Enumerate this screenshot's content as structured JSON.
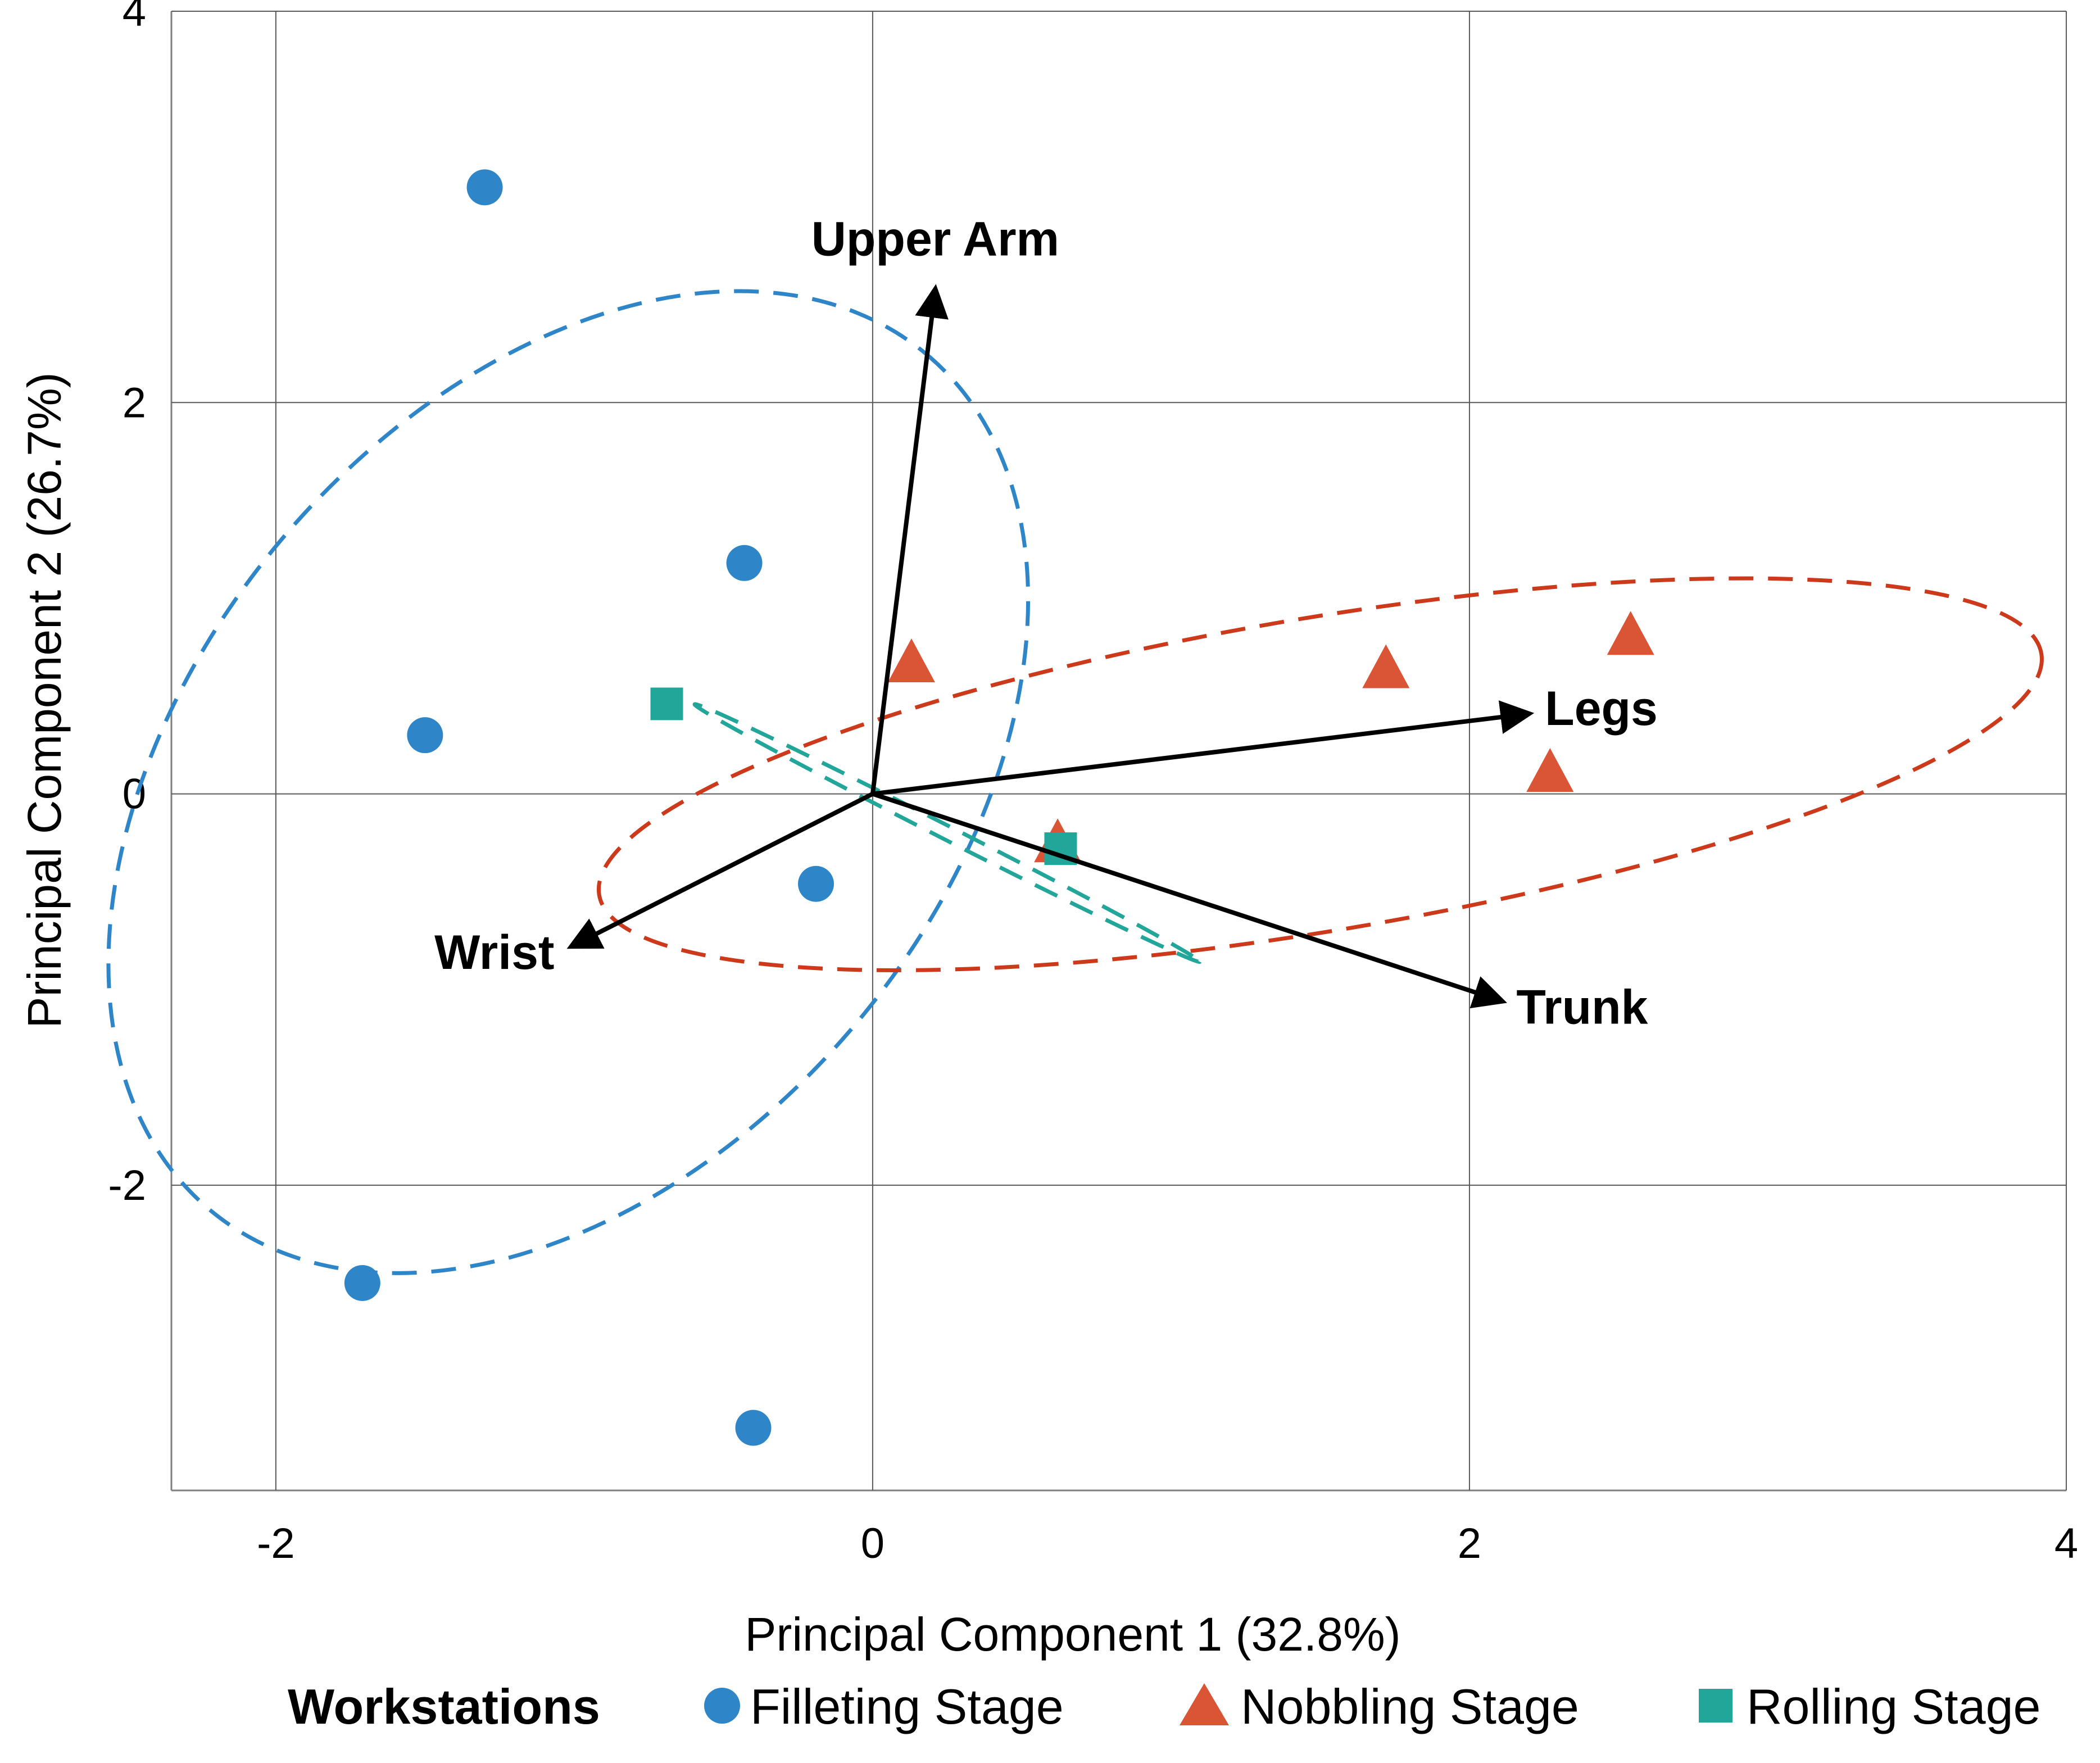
{
  "chart_data": {
    "type": "scatter",
    "xlabel": "Principal Component 1 (32.8%)",
    "ylabel": "Principal Component 2 (26.7%)",
    "xlim": [
      -2.35,
      4
    ],
    "ylim": [
      -3.56,
      4
    ],
    "xticks": [
      -2,
      0,
      2,
      4
    ],
    "yticks": [
      -2,
      0,
      2,
      4
    ],
    "xtick_labels": [
      "-2",
      "0",
      "2",
      "4"
    ],
    "ytick_labels": [
      "-2",
      "0",
      "2",
      "4"
    ],
    "grid": true,
    "legend": {
      "title": "Workstations",
      "placement": "bottom"
    },
    "series": [
      {
        "name": "Filleting Stage",
        "marker": "circle",
        "color": "#2E86C9",
        "points": [
          {
            "x": -1.3,
            "y": 3.1
          },
          {
            "x": -0.43,
            "y": 1.18
          },
          {
            "x": -1.5,
            "y": 0.3
          },
          {
            "x": -0.19,
            "y": -0.46
          },
          {
            "x": -1.71,
            "y": -2.5
          },
          {
            "x": -0.4,
            "y": -3.24
          }
        ]
      },
      {
        "name": "Nobbling Stage",
        "marker": "triangle",
        "color": "#D95535",
        "points": [
          {
            "x": 0.13,
            "y": 0.66
          },
          {
            "x": 1.72,
            "y": 0.63
          },
          {
            "x": 2.54,
            "y": 0.8
          },
          {
            "x": 2.27,
            "y": 0.1
          },
          {
            "x": 0.62,
            "y": -0.26
          }
        ]
      },
      {
        "name": "Rolling Stage",
        "marker": "square",
        "color": "#22A69A",
        "points": [
          {
            "x": -0.69,
            "y": 0.46
          },
          {
            "x": 0.63,
            "y": -0.28
          }
        ]
      }
    ],
    "loadings": [
      {
        "label": "Upper Arm",
        "x": 0.21,
        "y": 2.58
      },
      {
        "label": "Legs",
        "x": 2.2,
        "y": 0.41
      },
      {
        "label": "Trunk",
        "x": 2.11,
        "y": -1.06
      },
      {
        "label": "Wrist",
        "x": -1.01,
        "y": -0.78
      }
    ],
    "ellipses": [
      {
        "series": "Filleting Stage",
        "color": "#2E86C9",
        "cx": -1.02,
        "cy": 0.06,
        "rx": 1.87,
        "ry": 1.92,
        "angle": 50
      },
      {
        "series": "Nobbling Stage",
        "color": "#CC3A1B",
        "cx": 1.5,
        "cy": 0.1,
        "rx": 2.45,
        "ry": 0.8,
        "angle": 9.5
      },
      {
        "series": "Rolling Stage",
        "color": "#22A69A",
        "cx": 0.25,
        "cy": -0.2,
        "rx": 0.95,
        "ry": 0.035,
        "angle": -27
      }
    ]
  }
}
